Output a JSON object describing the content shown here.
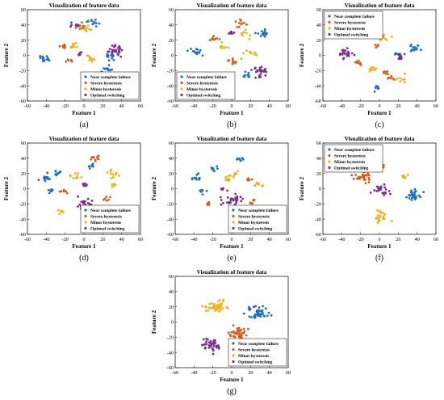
{
  "figure": {
    "title": "Visualization of feature data",
    "x_label": "Feature 1",
    "y_label": "Feature 2",
    "class_names": [
      "Near complete failure",
      "Severe hysteresis",
      "Minor hysteresis",
      "Optimal switching"
    ],
    "class_colors": [
      "#1f6fc1",
      "#d75c17",
      "#edb21e",
      "#7b2c90"
    ]
  },
  "chart_data": [
    {
      "label": "(a)",
      "type": "scatter",
      "title": "Visualization of feature data",
      "xlabel": "Feature 1",
      "ylabel": "Feature 2",
      "xlim": [
        -60,
        60
      ],
      "ylim": [
        -60,
        60
      ],
      "x_ticks": [
        -60,
        -40,
        -20,
        0,
        20,
        40,
        60
      ],
      "y_ticks": [
        60,
        40,
        20,
        0,
        -20,
        -40,
        -60
      ],
      "legend": "bottom-right",
      "grid": false,
      "series": [
        {
          "name": "Near complete failure",
          "color": "#1f6fc1",
          "clusters": [
            {
              "x": -42,
              "y": -4,
              "n": 14,
              "s": 3
            },
            {
              "x": 10,
              "y": 44,
              "n": 12,
              "s": 3
            },
            {
              "x": 28,
              "y": -2,
              "n": 12,
              "s": 3
            },
            {
              "x": 24,
              "y": -18,
              "n": 10,
              "s": 3
            }
          ]
        },
        {
          "name": "Severe hysteresis",
          "color": "#d75c17",
          "clusters": [
            {
              "x": -22,
              "y": 12,
              "n": 10,
              "s": 2
            },
            {
              "x": -4,
              "y": 38,
              "n": 12,
              "s": 3
            },
            {
              "x": 12,
              "y": -30,
              "n": 8,
              "s": 2
            },
            {
              "x": -18,
              "y": -8,
              "n": 6,
              "s": 2
            }
          ]
        },
        {
          "name": "Minor hysteresis",
          "color": "#edb21e",
          "clusters": [
            {
              "x": -12,
              "y": 12,
              "n": 10,
              "s": 2
            },
            {
              "x": 2,
              "y": 36,
              "n": 10,
              "s": 3
            },
            {
              "x": 8,
              "y": -5,
              "n": 10,
              "s": 3
            },
            {
              "x": 12,
              "y": -28,
              "n": 6,
              "s": 2
            }
          ]
        },
        {
          "name": "Optimal switching",
          "color": "#7b2c90",
          "clusters": [
            {
              "x": 32,
              "y": 8,
              "n": 26,
              "s": 5
            },
            {
              "x": -5,
              "y": 3,
              "n": 6,
              "s": 2
            },
            {
              "x": -10,
              "y": 40,
              "n": 6,
              "s": 2
            }
          ]
        }
      ]
    },
    {
      "label": "(b)",
      "type": "scatter",
      "title": "Visualization of feature data",
      "xlabel": "Feature 1",
      "ylabel": "Feature 2",
      "xlim": [
        -60,
        60
      ],
      "ylim": [
        -60,
        60
      ],
      "x_ticks": [
        -60,
        -40,
        -20,
        0,
        20,
        40,
        60
      ],
      "y_ticks": [
        60,
        40,
        20,
        0,
        -20,
        -40,
        -60
      ],
      "legend": "bottom-left",
      "grid": false,
      "series": [
        {
          "name": "Near complete failure",
          "color": "#1f6fc1",
          "clusters": [
            {
              "x": -40,
              "y": 5,
              "n": 14,
              "s": 4
            },
            {
              "x": 34,
              "y": 28,
              "n": 14,
              "s": 4
            },
            {
              "x": 16,
              "y": -25,
              "n": 10,
              "s": 3
            }
          ]
        },
        {
          "name": "Severe hysteresis",
          "color": "#d75c17",
          "clusters": [
            {
              "x": -18,
              "y": 22,
              "n": 10,
              "s": 3
            },
            {
              "x": 8,
              "y": 42,
              "n": 10,
              "s": 3
            },
            {
              "x": 0,
              "y": -10,
              "n": 10,
              "s": 3
            }
          ]
        },
        {
          "name": "Minor hysteresis",
          "color": "#edb21e",
          "clusters": [
            {
              "x": -10,
              "y": 10,
              "n": 10,
              "s": 3
            },
            {
              "x": 14,
              "y": 28,
              "n": 10,
              "s": 3
            },
            {
              "x": 20,
              "y": 2,
              "n": 10,
              "s": 3
            }
          ]
        },
        {
          "name": "Optimal switching",
          "color": "#7b2c90",
          "clusters": [
            {
              "x": 30,
              "y": -22,
              "n": 26,
              "s": 4
            },
            {
              "x": -2,
              "y": 32,
              "n": 6,
              "s": 2
            }
          ]
        }
      ]
    },
    {
      "label": "(c)",
      "type": "scatter",
      "title": "Visualization of feature data",
      "xlabel": "Feature 1",
      "ylabel": "Feature 2",
      "xlim": [
        -60,
        60
      ],
      "ylim": [
        -60,
        60
      ],
      "x_ticks": [
        -60,
        -40,
        -20,
        0,
        20,
        40,
        60
      ],
      "y_ticks": [
        60,
        40,
        20,
        0,
        -20,
        -40,
        -60
      ],
      "legend": "top-left",
      "grid": false,
      "series": [
        {
          "name": "Near complete failure",
          "color": "#1f6fc1",
          "clusters": [
            {
              "x": -2,
              "y": -42,
              "n": 8,
              "s": 2
            },
            {
              "x": 38,
              "y": 10,
              "n": 14,
              "s": 4
            },
            {
              "x": -22,
              "y": 30,
              "n": 8,
              "s": 3
            },
            {
              "x": 20,
              "y": 2,
              "n": 10,
              "s": 3
            }
          ]
        },
        {
          "name": "Severe hysteresis",
          "color": "#d75c17",
          "clusters": [
            {
              "x": -22,
              "y": -10,
              "n": 8,
              "s": 2
            },
            {
              "x": 6,
              "y": -22,
              "n": 8,
              "s": 2
            },
            {
              "x": 12,
              "y": -30,
              "n": 6,
              "s": 2
            },
            {
              "x": -2,
              "y": 12,
              "n": 6,
              "s": 2
            }
          ]
        },
        {
          "name": "Minor hysteresis",
          "color": "#edb21e",
          "clusters": [
            {
              "x": 4,
              "y": 22,
              "n": 10,
              "s": 3
            },
            {
              "x": -10,
              "y": -18,
              "n": 10,
              "s": 3
            },
            {
              "x": 25,
              "y": -30,
              "n": 8,
              "s": 3
            }
          ]
        },
        {
          "name": "Optimal switching",
          "color": "#7b2c90",
          "clusters": [
            {
              "x": -36,
              "y": 2,
              "n": 22,
              "s": 4
            },
            {
              "x": 22,
              "y": -2,
              "n": 8,
              "s": 2
            }
          ]
        }
      ]
    },
    {
      "label": "(d)",
      "type": "scatter",
      "title": "Visualization of feature data",
      "xlabel": "Feature 1",
      "ylabel": "Feature 2",
      "xlim": [
        -60,
        60
      ],
      "ylim": [
        -60,
        60
      ],
      "x_ticks": [
        -60,
        -40,
        -20,
        0,
        20,
        40,
        60
      ],
      "y_ticks": [
        60,
        40,
        20,
        0,
        -20,
        -40,
        -60
      ],
      "legend": "bottom-right",
      "grid": false,
      "series": [
        {
          "name": "Near complete failure",
          "color": "#1f6fc1",
          "clusters": [
            {
              "x": -40,
              "y": 14,
              "n": 14,
              "s": 3
            },
            {
              "x": -28,
              "y": 20,
              "n": 10,
              "s": 3
            },
            {
              "x": -36,
              "y": -2,
              "n": 8,
              "s": 2
            },
            {
              "x": 8,
              "y": 30,
              "n": 8,
              "s": 2
            }
          ]
        },
        {
          "name": "Severe hysteresis",
          "color": "#d75c17",
          "clusters": [
            {
              "x": 12,
              "y": 40,
              "n": 10,
              "s": 3
            },
            {
              "x": -22,
              "y": -4,
              "n": 6,
              "s": 2
            },
            {
              "x": 24,
              "y": -14,
              "n": 6,
              "s": 2
            }
          ]
        },
        {
          "name": "Minor hysteresis",
          "color": "#edb21e",
          "clusters": [
            {
              "x": -8,
              "y": 16,
              "n": 10,
              "s": 3
            },
            {
              "x": 30,
              "y": 18,
              "n": 10,
              "s": 3
            },
            {
              "x": 32,
              "y": 6,
              "n": 6,
              "s": 2
            },
            {
              "x": -24,
              "y": -30,
              "n": 6,
              "s": 2
            }
          ]
        },
        {
          "name": "Optimal switching",
          "color": "#7b2c90",
          "clusters": [
            {
              "x": 2,
              "y": -18,
              "n": 26,
              "s": 5
            },
            {
              "x": 0,
              "y": 6,
              "n": 6,
              "s": 2
            }
          ]
        }
      ]
    },
    {
      "label": "(e)",
      "type": "scatter",
      "title": "Visualization of feature data",
      "xlabel": "Feature 1",
      "ylabel": "Feature 2",
      "xlim": [
        -60,
        60
      ],
      "ylim": [
        -60,
        60
      ],
      "x_ticks": [
        -60,
        -40,
        -20,
        0,
        20,
        40,
        60
      ],
      "y_ticks": [
        60,
        40,
        20,
        0,
        -20,
        -40,
        -60
      ],
      "legend": "bottom-right",
      "grid": false,
      "series": [
        {
          "name": "Near complete failure",
          "color": "#1f6fc1",
          "clusters": [
            {
              "x": -38,
              "y": 14,
              "n": 12,
              "s": 3
            },
            {
              "x": -20,
              "y": 26,
              "n": 8,
              "s": 2
            },
            {
              "x": -32,
              "y": -4,
              "n": 8,
              "s": 2
            },
            {
              "x": 10,
              "y": 38,
              "n": 8,
              "s": 2
            }
          ]
        },
        {
          "name": "Severe hysteresis",
          "color": "#d75c17",
          "clusters": [
            {
              "x": -24,
              "y": -20,
              "n": 6,
              "s": 2
            },
            {
              "x": 18,
              "y": 12,
              "n": 8,
              "s": 2
            },
            {
              "x": 22,
              "y": -16,
              "n": 6,
              "s": 2
            }
          ]
        },
        {
          "name": "Minor hysteresis",
          "color": "#edb21e",
          "clusters": [
            {
              "x": -4,
              "y": 14,
              "n": 10,
              "s": 3
            },
            {
              "x": 28,
              "y": 6,
              "n": 8,
              "s": 3
            },
            {
              "x": 4,
              "y": 20,
              "n": 6,
              "s": 2
            }
          ]
        },
        {
          "name": "Optimal switching",
          "color": "#7b2c90",
          "clusters": [
            {
              "x": 0,
              "y": -16,
              "n": 26,
              "s": 5
            },
            {
              "x": -8,
              "y": 0,
              "n": 6,
              "s": 2
            }
          ]
        }
      ]
    },
    {
      "label": "(f)",
      "type": "scatter",
      "title": "Visualization of feature data",
      "xlabel": "Feature 1",
      "ylabel": "Feature 2",
      "xlim": [
        -60,
        60
      ],
      "ylim": [
        -60,
        60
      ],
      "x_ticks": [
        -60,
        -40,
        -20,
        0,
        20,
        40,
        60
      ],
      "y_ticks": [
        60,
        40,
        20,
        0,
        -20,
        -40,
        -60
      ],
      "legend": "top-left",
      "grid": false,
      "series": [
        {
          "name": "Near complete failure",
          "color": "#1f6fc1",
          "clusters": [
            {
              "x": 36,
              "y": -8,
              "n": 30,
              "s": 5
            }
          ]
        },
        {
          "name": "Severe hysteresis",
          "color": "#d75c17",
          "clusters": [
            {
              "x": -18,
              "y": 16,
              "n": 28,
              "s": 5
            },
            {
              "x": 4,
              "y": 30,
              "n": 6,
              "s": 2
            }
          ]
        },
        {
          "name": "Minor hysteresis",
          "color": "#edb21e",
          "clusters": [
            {
              "x": 2,
              "y": -36,
              "n": 26,
              "s": 5
            },
            {
              "x": 28,
              "y": 16,
              "n": 6,
              "s": 2
            }
          ]
        },
        {
          "name": "Optimal switching",
          "color": "#7b2c90",
          "clusters": [
            {
              "x": 2,
              "y": -2,
              "n": 28,
              "s": 5
            }
          ]
        }
      ]
    },
    {
      "label": "(g)",
      "type": "scatter",
      "title": "Visualization of feature data",
      "xlabel": "Feature 1",
      "ylabel": "Feature 2",
      "xlim": [
        -60,
        60
      ],
      "ylim": [
        -60,
        60
      ],
      "x_ticks": [
        -60,
        -40,
        -20,
        0,
        20,
        40,
        60
      ],
      "y_ticks": [
        60,
        40,
        20,
        0,
        -20,
        -40,
        -60
      ],
      "legend": "bottom-right",
      "grid": false,
      "series": [
        {
          "name": "Near complete failure",
          "color": "#1f6fc1",
          "clusters": [
            {
              "x": 28,
              "y": 12,
              "n": 44,
              "s": 6
            }
          ]
        },
        {
          "name": "Severe hysteresis",
          "color": "#d75c17",
          "clusters": [
            {
              "x": 6,
              "y": -14,
              "n": 40,
              "s": 5
            }
          ]
        },
        {
          "name": "Minor hysteresis",
          "color": "#edb21e",
          "clusters": [
            {
              "x": -16,
              "y": 20,
              "n": 44,
              "s": 6
            }
          ]
        },
        {
          "name": "Optimal switching",
          "color": "#7b2c90",
          "clusters": [
            {
              "x": -22,
              "y": -30,
              "n": 40,
              "s": 5
            }
          ]
        }
      ]
    }
  ]
}
